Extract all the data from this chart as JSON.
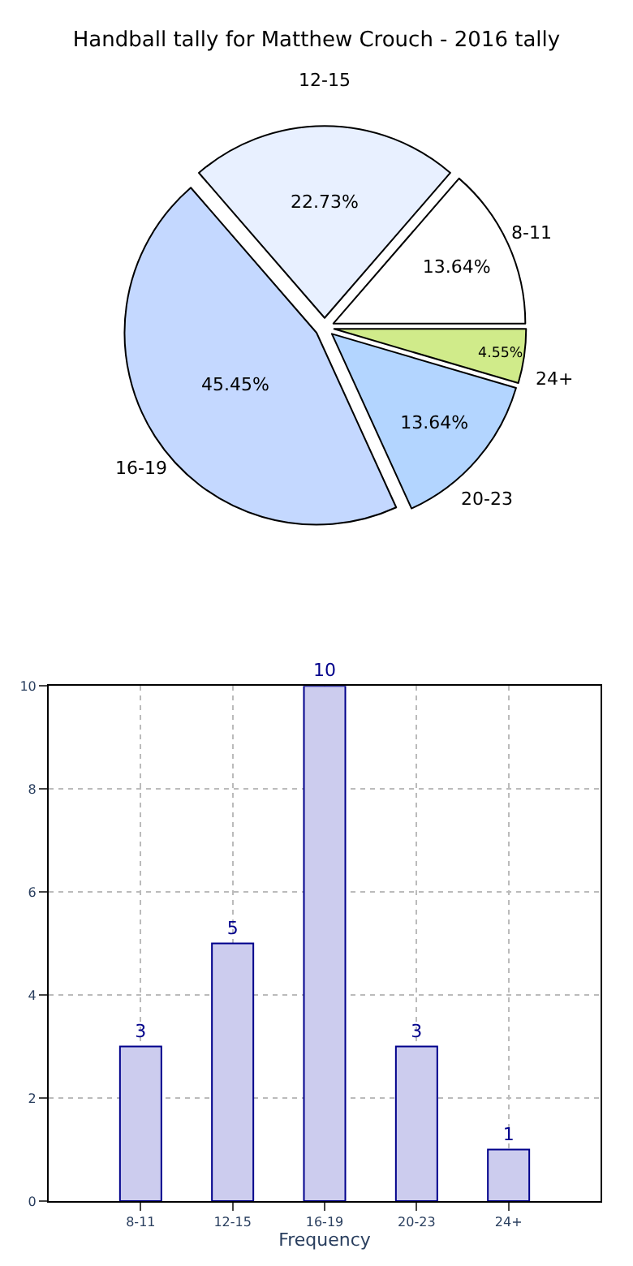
{
  "chart_data": [
    {
      "type": "pie",
      "title": "Handball tally for Matthew Crouch - 2016 tally",
      "categories": [
        "8-11",
        "12-15",
        "16-19",
        "20-23",
        "24+"
      ],
      "values": [
        13.64,
        22.73,
        45.45,
        13.64,
        4.55
      ],
      "colors": [
        "#ffffff",
        "#e8f0ff",
        "#c4d8ff",
        "#b3d5ff",
        "#d0eb8a"
      ],
      "value_labels": [
        "13.64%",
        "22.73%",
        "45.45%",
        "13.64%",
        "4.55%"
      ]
    },
    {
      "type": "bar",
      "xlabel": "Frequency",
      "categories": [
        "8-11",
        "12-15",
        "16-19",
        "20-23",
        "24+"
      ],
      "values": [
        3,
        5,
        10,
        3,
        1
      ],
      "color": "#ccccee",
      "ylim": [
        0,
        10
      ],
      "yticks": [
        0,
        2,
        4,
        6,
        8,
        10
      ],
      "grid": true,
      "data_labels": true
    }
  ]
}
